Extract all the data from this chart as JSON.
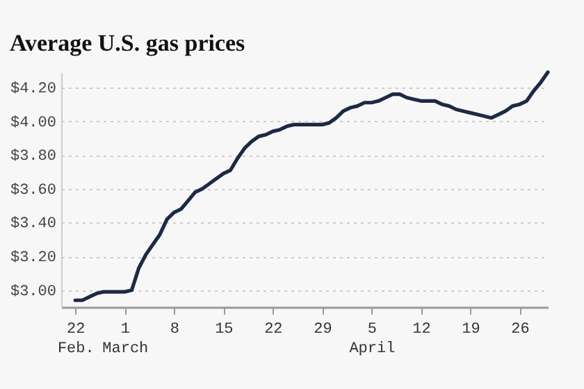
{
  "chart_data": {
    "type": "line",
    "title": "Average U.S. gas prices",
    "x": [
      "--02-22",
      "--02-23",
      "--02-24",
      "--02-25",
      "--02-26",
      "--02-27",
      "--02-28",
      "--03-01",
      "--03-02",
      "--03-03",
      "--03-04",
      "--03-05",
      "--03-06",
      "--03-07",
      "--03-08",
      "--03-09",
      "--03-10",
      "--03-11",
      "--03-12",
      "--03-13",
      "--03-14",
      "--03-15",
      "--03-16",
      "--03-17",
      "--03-18",
      "--03-19",
      "--03-20",
      "--03-21",
      "--03-22",
      "--03-23",
      "--03-24",
      "--03-25",
      "--03-26",
      "--03-27",
      "--03-28",
      "--03-29",
      "--03-30",
      "--03-31",
      "--04-01",
      "--04-02",
      "--04-03",
      "--04-04",
      "--04-05",
      "--04-06",
      "--04-07",
      "--04-08",
      "--04-09",
      "--04-10",
      "--04-11",
      "--04-12",
      "--04-13",
      "--04-14",
      "--04-15",
      "--04-16",
      "--04-17",
      "--04-18",
      "--04-19",
      "--04-20",
      "--04-21",
      "--04-22",
      "--04-23",
      "--04-24",
      "--04-25",
      "--04-26",
      "--04-27",
      "--04-28",
      "--04-29",
      "--04-30"
    ],
    "series": [
      {
        "color": "#1c2a44",
        "values": [
          2.94,
          2.94,
          2.96,
          2.98,
          2.99,
          2.99,
          2.99,
          2.99,
          3.0,
          3.13,
          3.21,
          3.27,
          3.33,
          3.42,
          3.46,
          3.48,
          3.53,
          3.58,
          3.6,
          3.63,
          3.66,
          3.69,
          3.71,
          3.78,
          3.84,
          3.88,
          3.91,
          3.92,
          3.94,
          3.95,
          3.97,
          3.98,
          3.98,
          3.98,
          3.98,
          3.98,
          3.99,
          4.02,
          4.06,
          4.08,
          4.09,
          4.11,
          4.11,
          4.12,
          4.14,
          4.16,
          4.16,
          4.14,
          4.13,
          4.12,
          4.12,
          4.12,
          4.1,
          4.09,
          4.07,
          4.06,
          4.05,
          4.04,
          4.03,
          4.02,
          4.04,
          4.06,
          4.09,
          4.1,
          4.12,
          4.18,
          4.23,
          4.29
        ]
      }
    ],
    "xlim": [
      "--02-20",
      "--04-30"
    ],
    "xticks": [
      {
        "value": "--02-22",
        "label": "22\nFeb."
      },
      {
        "value": "--03-01",
        "label": "1\nMarch"
      },
      {
        "value": "--03-08",
        "label": "8"
      },
      {
        "value": "--03-15",
        "label": "15"
      },
      {
        "value": "--03-22",
        "label": "22"
      },
      {
        "value": "--03-29",
        "label": "29"
      },
      {
        "value": "--04-05",
        "label": "5\nApril"
      },
      {
        "value": "--04-12",
        "label": "12"
      },
      {
        "value": "--04-19",
        "label": "19"
      },
      {
        "value": "--04-26",
        "label": "26"
      }
    ],
    "ylim": [
      2.9,
      4.29
    ],
    "yticks": [
      {
        "value": 3.0,
        "label": "$3.00"
      },
      {
        "value": 3.2,
        "label": "$3.20"
      },
      {
        "value": 3.4,
        "label": "$3.40"
      },
      {
        "value": 3.6,
        "label": "$3.60"
      },
      {
        "value": 3.8,
        "label": "$3.80"
      },
      {
        "value": 4.0,
        "label": "$4.00"
      },
      {
        "value": 4.2,
        "label": "$4.20"
      }
    ],
    "grid": "y",
    "marker": "none",
    "line_style": "solid",
    "legend": false
  }
}
